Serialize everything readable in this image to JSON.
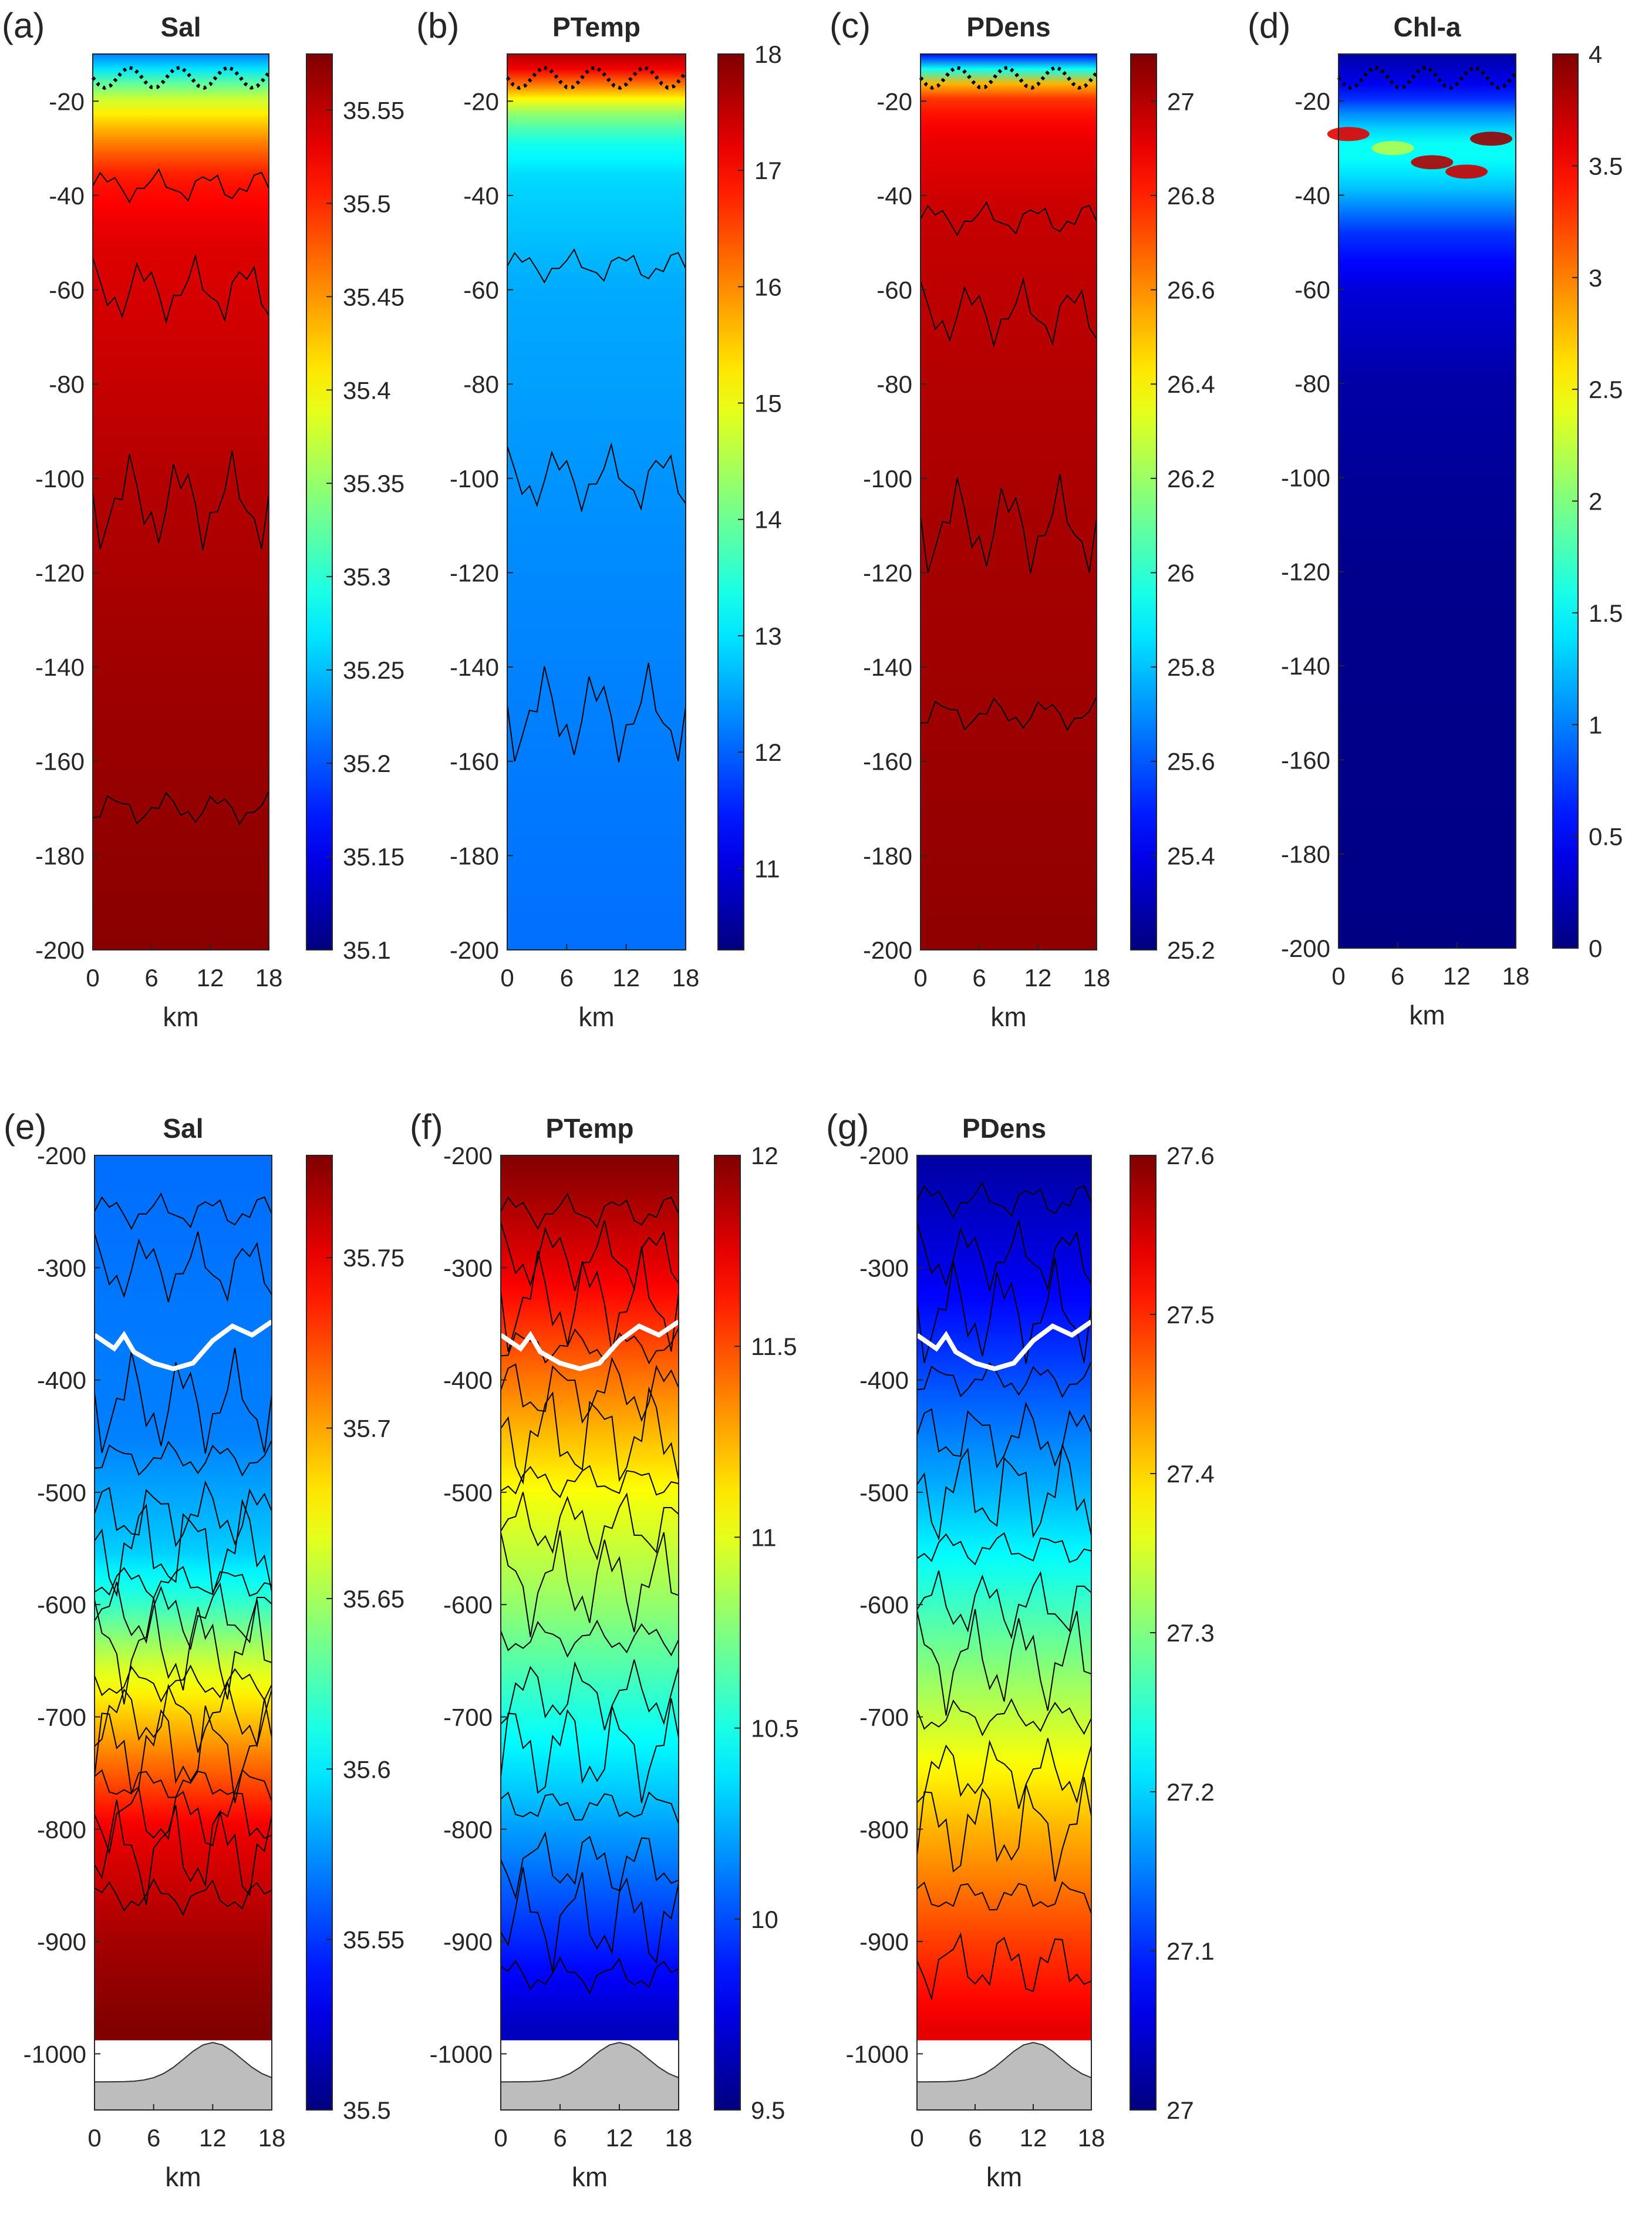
{
  "chart_data": [
    {
      "type": "heatmap",
      "panel_label": "(a)",
      "title": "Sal",
      "xlabel": "km",
      "ylabel": "",
      "x_ticks": [
        0,
        6,
        12,
        18
      ],
      "y_ticks": [
        -20,
        -40,
        -60,
        -80,
        -100,
        -120,
        -140,
        -160,
        -180,
        -200
      ],
      "xlim": [
        0,
        18
      ],
      "ylim": [
        -200,
        -10
      ],
      "colormap": "jet",
      "colorbar": {
        "ticks": [
          35.55,
          35.5,
          35.45,
          35.4,
          35.35,
          35.3,
          35.25,
          35.2,
          35.15,
          35.1
        ],
        "range": [
          35.1,
          35.58
        ]
      },
      "overlay": "dotted black line (mixed layer depth) near -15 m",
      "value_profile": [
        [
          -10,
          35.22
        ],
        [
          -14,
          35.28
        ],
        [
          -18,
          35.36
        ],
        [
          -24,
          35.42
        ],
        [
          -30,
          35.47
        ],
        [
          -36,
          35.51
        ],
        [
          -50,
          35.535
        ],
        [
          -100,
          35.555
        ],
        [
          -140,
          35.565
        ],
        [
          -200,
          35.575
        ]
      ],
      "contour_depths_m": [
        -38,
        -60,
        -105,
        -170
      ]
    },
    {
      "type": "heatmap",
      "panel_label": "(b)",
      "title": "PTemp",
      "xlabel": "km",
      "ylabel": "",
      "x_ticks": [
        0,
        6,
        12,
        18
      ],
      "y_ticks": [
        -20,
        -40,
        -60,
        -80,
        -100,
        -120,
        -140,
        -160,
        -180,
        -200
      ],
      "xlim": [
        0,
        18
      ],
      "ylim": [
        -200,
        -10
      ],
      "colormap": "jet",
      "colorbar": {
        "ticks": [
          18,
          17,
          16,
          15,
          14,
          13,
          12,
          11
        ],
        "range": [
          10.3,
          18
        ]
      },
      "overlay": "dotted black line (mixed layer depth) near -15 m",
      "value_profile": [
        [
          -10,
          17.6
        ],
        [
          -14,
          17.0
        ],
        [
          -18,
          15.6
        ],
        [
          -22,
          14.4
        ],
        [
          -28,
          13.4
        ],
        [
          -36,
          12.9
        ],
        [
          -60,
          12.55
        ],
        [
          -120,
          12.3
        ],
        [
          -200,
          12.1
        ]
      ],
      "contour_depths_m": [
        -55,
        -100,
        -150
      ]
    },
    {
      "type": "heatmap",
      "panel_label": "(c)",
      "title": "PDens",
      "xlabel": "km",
      "ylabel": "",
      "x_ticks": [
        0,
        6,
        12,
        18
      ],
      "y_ticks": [
        -20,
        -40,
        -60,
        -80,
        -100,
        -120,
        -140,
        -160,
        -180,
        -200
      ],
      "xlim": [
        0,
        18
      ],
      "ylim": [
        -200,
        -10
      ],
      "colormap": "jet",
      "colorbar": {
        "ticks": [
          27,
          26.8,
          26.6,
          26.4,
          26.2,
          26,
          25.8,
          25.6,
          25.4,
          25.2
        ],
        "range": [
          25.2,
          27.1
        ]
      },
      "overlay": "dotted black line (mixed layer depth) near -15 m",
      "value_profile": [
        [
          -10,
          25.45
        ],
        [
          -13,
          25.9
        ],
        [
          -16,
          26.5
        ],
        [
          -20,
          26.8
        ],
        [
          -28,
          26.9
        ],
        [
          -45,
          26.97
        ],
        [
          -100,
          27.02
        ],
        [
          -200,
          27.07
        ]
      ],
      "contour_depths_m": [
        -45,
        -65,
        -110,
        -150
      ]
    },
    {
      "type": "heatmap",
      "panel_label": "(d)",
      "title": "Chl-a",
      "xlabel": "km",
      "ylabel": "",
      "x_ticks": [
        0,
        6,
        12,
        18
      ],
      "y_ticks": [
        -20,
        -40,
        -60,
        -80,
        -100,
        -120,
        -140,
        -160,
        -180,
        -200
      ],
      "xlim": [
        0,
        18
      ],
      "ylim": [
        -200,
        -10
      ],
      "colormap": "jet",
      "colorbar": {
        "ticks": [
          4,
          3.5,
          3,
          2.5,
          2,
          1.5,
          1,
          0.5,
          0
        ],
        "range": [
          0,
          4
        ]
      },
      "overlay": "dotted black line (mixed layer depth) near -15 m",
      "value_profile": [
        [
          -10,
          0.15
        ],
        [
          -18,
          0.5
        ],
        [
          -24,
          1.2
        ],
        [
          -30,
          1.6
        ],
        [
          -38,
          1.3
        ],
        [
          -48,
          0.7
        ],
        [
          -60,
          0.35
        ],
        [
          -80,
          0.15
        ],
        [
          -120,
          0.05
        ],
        [
          -200,
          0.02
        ]
      ],
      "contour_depths_m": []
    },
    {
      "type": "heatmap",
      "panel_label": "(e)",
      "title": "Sal",
      "xlabel": "km",
      "ylabel": "",
      "x_ticks": [
        0,
        6,
        12,
        18
      ],
      "y_ticks": [
        -200,
        -300,
        -400,
        -500,
        -600,
        -700,
        -800,
        -900,
        -1000
      ],
      "xlim": [
        0,
        18
      ],
      "ylim": [
        -1050,
        -200
      ],
      "colormap": "jet",
      "colorbar": {
        "ticks": [
          35.75,
          35.7,
          35.65,
          35.6,
          35.55,
          35.5
        ],
        "range": [
          35.5,
          35.78
        ]
      },
      "overlay": "white line near -360 m; gray seafloor at bottom",
      "value_profile": [
        [
          -200,
          35.565
        ],
        [
          -450,
          35.57
        ],
        [
          -550,
          35.59
        ],
        [
          -600,
          35.62
        ],
        [
          -650,
          35.66
        ],
        [
          -700,
          35.69
        ],
        [
          -750,
          35.72
        ],
        [
          -800,
          35.75
        ],
        [
          -900,
          35.77
        ],
        [
          -980,
          35.78
        ]
      ],
      "contour_depths_m": [
        -250,
        -300,
        -420,
        -470,
        -520,
        -550,
        -580,
        -610,
        -640,
        -670,
        -700,
        -730,
        -760,
        -790,
        -820,
        -860
      ]
    },
    {
      "type": "heatmap",
      "panel_label": "(f)",
      "title": "PTemp",
      "xlabel": "km",
      "ylabel": "",
      "x_ticks": [
        0,
        6,
        12,
        18
      ],
      "y_ticks": [
        -200,
        -300,
        -400,
        -500,
        -600,
        -700,
        -800,
        -900,
        -1000
      ],
      "xlim": [
        0,
        18
      ],
      "ylim": [
        -1050,
        -200
      ],
      "colormap": "jet",
      "colorbar": {
        "ticks": [
          12,
          11.5,
          11,
          10.5,
          10,
          9.5
        ],
        "range": [
          9.5,
          12
        ]
      },
      "overlay": "white line near -360 m; gray seafloor at bottom",
      "value_profile": [
        [
          -200,
          12.0
        ],
        [
          -300,
          11.75
        ],
        [
          -400,
          11.4
        ],
        [
          -500,
          11.05
        ],
        [
          -600,
          10.8
        ],
        [
          -700,
          10.5
        ],
        [
          -800,
          10.2
        ],
        [
          -900,
          9.9
        ],
        [
          -980,
          9.65
        ]
      ],
      "contour_depths_m": [
        -250,
        -290,
        -330,
        -370,
        -410,
        -450,
        -490,
        -530,
        -580,
        -630,
        -680,
        -730,
        -780,
        -830,
        -880,
        -930
      ]
    },
    {
      "type": "heatmap",
      "panel_label": "(g)",
      "title": "PDens",
      "xlabel": "km",
      "ylabel": "",
      "x_ticks": [
        0,
        6,
        12,
        18
      ],
      "y_ticks": [
        -200,
        -300,
        -400,
        -500,
        -600,
        -700,
        -800,
        -900,
        -1000
      ],
      "xlim": [
        0,
        18
      ],
      "ylim": [
        -1050,
        -200
      ],
      "colormap": "jet",
      "colorbar": {
        "ticks": [
          27.6,
          27.5,
          27.4,
          27.3,
          27.2,
          27.1,
          27
        ],
        "range": [
          27,
          27.6
        ]
      },
      "overlay": "white line near -360 m; gray seafloor at bottom",
      "value_profile": [
        [
          -200,
          27.02
        ],
        [
          -300,
          27.06
        ],
        [
          -400,
          27.12
        ],
        [
          -500,
          27.18
        ],
        [
          -600,
          27.26
        ],
        [
          -700,
          27.34
        ],
        [
          -800,
          27.42
        ],
        [
          -900,
          27.49
        ],
        [
          -980,
          27.54
        ]
      ],
      "contour_depths_m": [
        -240,
        -290,
        -340,
        -400,
        -450,
        -500,
        -550,
        -600,
        -650,
        -700,
        -750,
        -800,
        -860,
        -920
      ]
    }
  ]
}
